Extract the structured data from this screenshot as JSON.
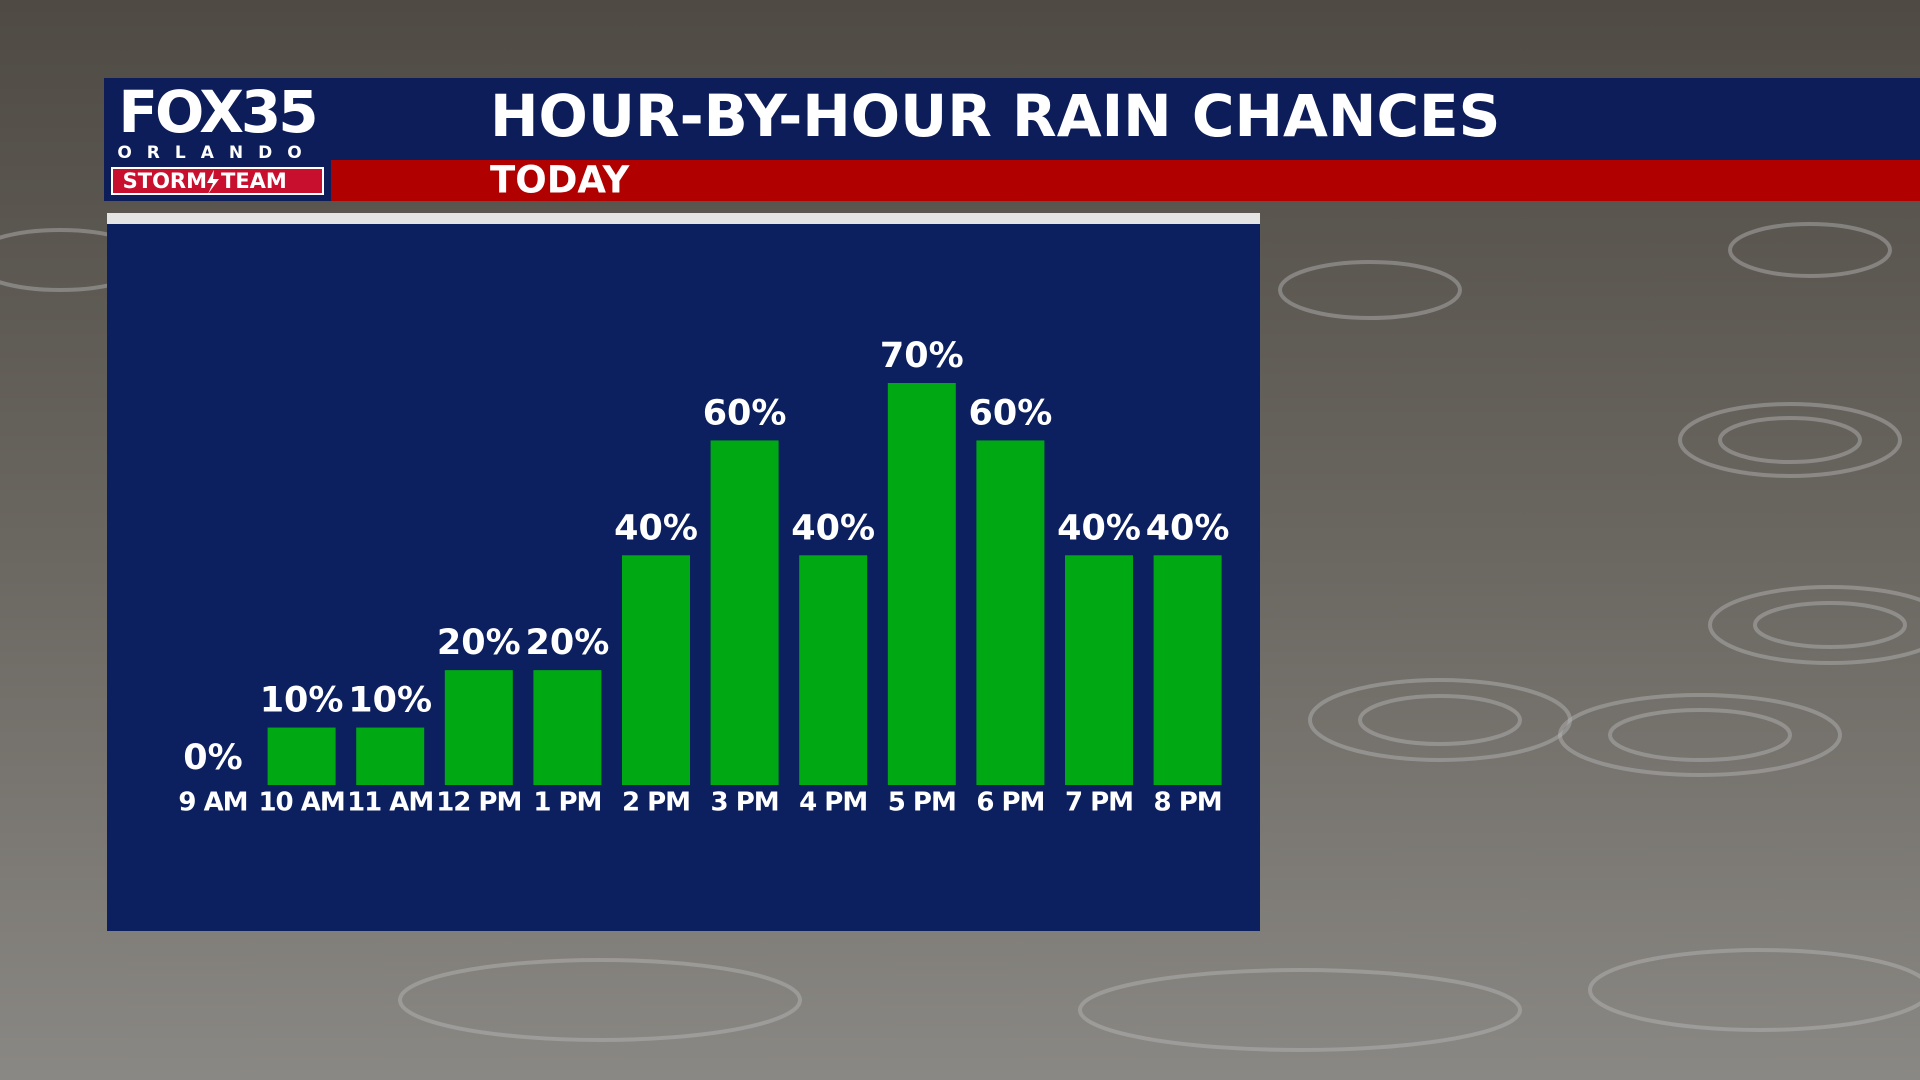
{
  "logo": {
    "name": "FOX35",
    "city": "ORLANDO",
    "team_left": "STORM",
    "team_right": "TEAM"
  },
  "chart_data": {
    "type": "bar",
    "title": "HOUR-BY-HOUR RAIN CHANCES",
    "subtitle": "TODAY",
    "categories": [
      "9 AM",
      "10 AM",
      "11 AM",
      "12 PM",
      "1 PM",
      "2 PM",
      "3 PM",
      "4 PM",
      "5 PM",
      "6 PM",
      "7 PM",
      "8 PM"
    ],
    "values": [
      0,
      10,
      10,
      20,
      20,
      40,
      60,
      40,
      70,
      60,
      40,
      40
    ],
    "value_labels": [
      "0%",
      "10%",
      "10%",
      "20%",
      "20%",
      "40%",
      "60%",
      "40%",
      "70%",
      "60%",
      "40%",
      "40%"
    ],
    "color": "#00a814"
  }
}
